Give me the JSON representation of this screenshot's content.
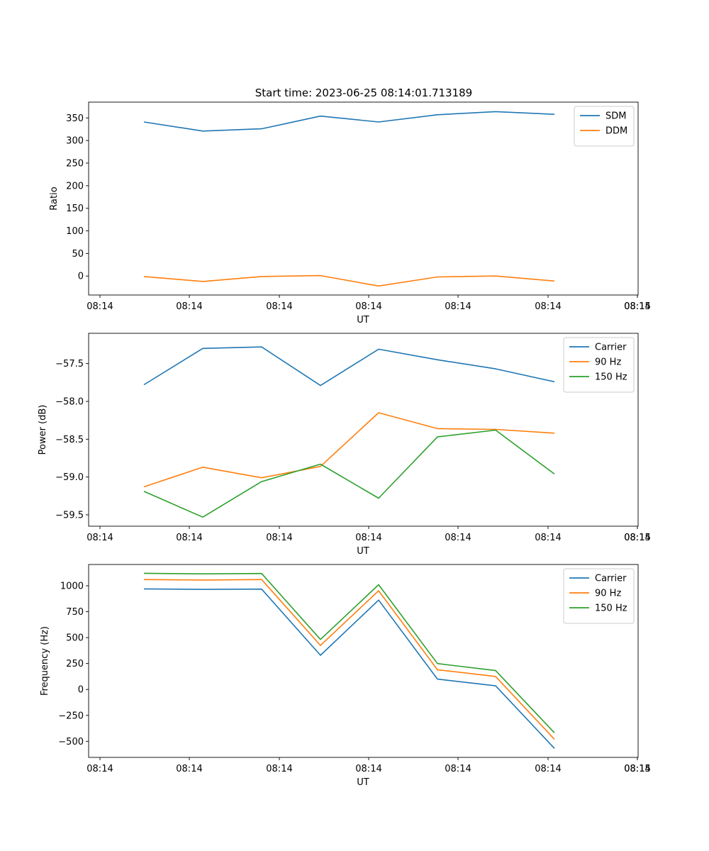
{
  "figure": {
    "title": "Start time: 2023-06-25 08:14:01.713189"
  },
  "chart_data": [
    {
      "type": "line",
      "xlabel": "UT",
      "ylabel": "Ratio",
      "x_tick_labels": [
        "08:14",
        "08:14",
        "08:14",
        "08:14",
        "08:14",
        "08:14",
        "08:14"
      ],
      "x_end_tick_label": "08:15",
      "yticks": [
        0,
        50,
        100,
        150,
        200,
        250,
        300,
        350
      ],
      "ylim": [
        -42,
        385
      ],
      "grid": false,
      "legend_position": "top-right",
      "series": [
        {
          "name": "SDM",
          "color": "#1f77b4",
          "values": [
            341,
            321,
            326,
            354,
            341,
            357,
            364,
            358
          ]
        },
        {
          "name": "DDM",
          "color": "#ff7f0e",
          "values": [
            -1,
            -12,
            -1,
            1,
            -22,
            -2,
            0,
            -11
          ]
        }
      ]
    },
    {
      "type": "line",
      "xlabel": "UT",
      "ylabel": "Power (dB)",
      "x_tick_labels": [
        "08:14",
        "08:14",
        "08:14",
        "08:14",
        "08:14",
        "08:14",
        "08:14"
      ],
      "x_end_tick_label": "08:15",
      "yticks": [
        -59.5,
        -59.0,
        -58.5,
        -58.0,
        -57.5
      ],
      "ytick_labels": [
        "−59.5",
        "−59.0",
        "−58.5",
        "−58.0",
        "−57.5"
      ],
      "ylim": [
        -59.65,
        -57.1
      ],
      "grid": false,
      "legend_position": "top-right",
      "series": [
        {
          "name": "Carrier",
          "color": "#1f77b4",
          "values": [
            -57.78,
            -57.3,
            -57.28,
            -57.79,
            -57.31,
            -57.45,
            -57.57,
            -57.74
          ]
        },
        {
          "name": "90 Hz",
          "color": "#ff7f0e",
          "values": [
            -59.13,
            -58.87,
            -59.01,
            -58.86,
            -58.15,
            -58.36,
            -58.37,
            -58.42
          ]
        },
        {
          "name": "150 Hz",
          "color": "#2ca02c",
          "values": [
            -59.19,
            -59.53,
            -59.06,
            -58.83,
            -59.28,
            -58.47,
            -58.38,
            -58.96
          ]
        }
      ]
    },
    {
      "type": "line",
      "xlabel": "UT",
      "ylabel": "Frequency (Hz)",
      "x_tick_labels": [
        "08:14",
        "08:14",
        "08:14",
        "08:14",
        "08:14",
        "08:14",
        "08:14"
      ],
      "x_end_tick_label": "08:15",
      "yticks": [
        -500,
        -250,
        0,
        250,
        500,
        750,
        1000
      ],
      "ytick_labels": [
        "−500",
        "−250",
        "0",
        "250",
        "500",
        "750",
        "1000"
      ],
      "ylim": [
        -655,
        1205
      ],
      "grid": false,
      "legend_position": "top-right",
      "series": [
        {
          "name": "Carrier",
          "color": "#1f77b4",
          "values": [
            970,
            965,
            968,
            330,
            862,
            100,
            35,
            -568
          ]
        },
        {
          "name": "90 Hz",
          "color": "#ff7f0e",
          "values": [
            1060,
            1055,
            1060,
            425,
            952,
            190,
            125,
            -480
          ]
        },
        {
          "name": "150 Hz",
          "color": "#2ca02c",
          "values": [
            1120,
            1115,
            1118,
            482,
            1010,
            250,
            182,
            -418
          ]
        }
      ]
    }
  ]
}
